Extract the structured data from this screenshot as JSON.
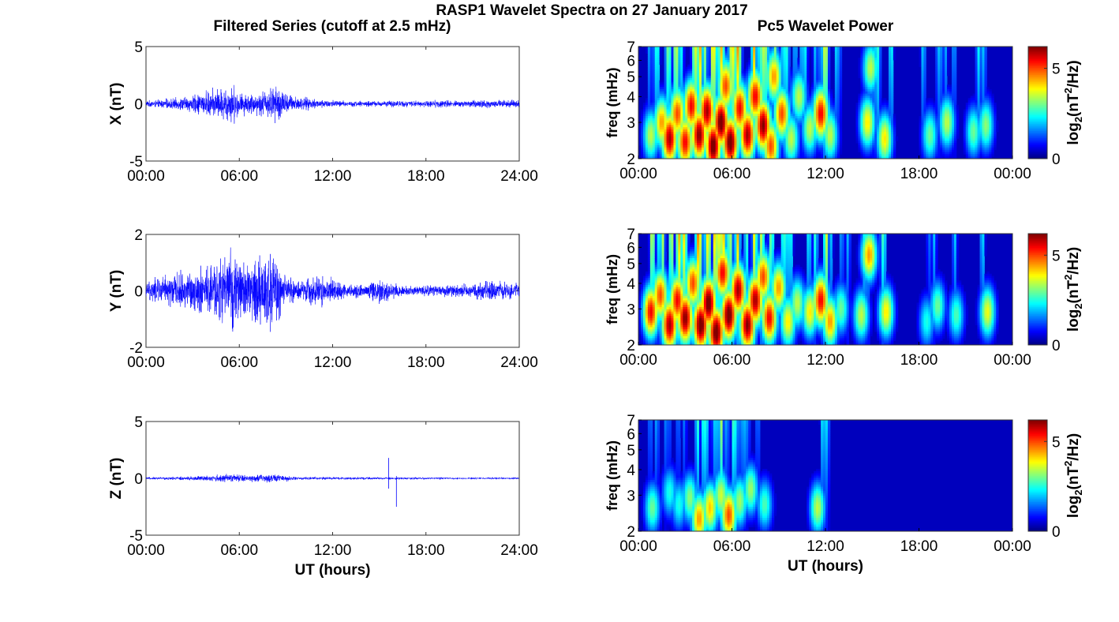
{
  "title": "RASP1 Wavelet Spectra on 27 January 2017",
  "left_title": "Filtered Series (cutoff at 2.5 mHz)",
  "right_title": "Pc5 Wavelet Power",
  "colorbar": {
    "label": "log2(nT2/Hz)",
    "ticks": [
      "0",
      "5"
    ],
    "range": [
      0,
      6.2
    ],
    "colormap": "jet"
  },
  "chart_data": [
    {
      "type": "line",
      "panel": "X",
      "title": "",
      "xlabel": "",
      "ylabel": "X (nT)",
      "xlim": [
        0,
        24
      ],
      "ylim": [
        -5,
        5
      ],
      "xticks": [
        "00:00",
        "06:00",
        "12:00",
        "18:00",
        "24:00"
      ],
      "yticks": [
        "-5",
        "0",
        "5"
      ],
      "color": "#0000ff",
      "envelope": [
        {
          "t": 0,
          "amp": 0.3
        },
        {
          "t": 1,
          "amp": 0.45
        },
        {
          "t": 2,
          "amp": 0.6
        },
        {
          "t": 3,
          "amp": 0.9
        },
        {
          "t": 4,
          "amp": 1.4
        },
        {
          "t": 5,
          "amp": 1.7
        },
        {
          "t": 5.5,
          "amp": 2.3
        },
        {
          "t": 6,
          "amp": 1.2
        },
        {
          "t": 7,
          "amp": 1.1
        },
        {
          "t": 8,
          "amp": 1.7
        },
        {
          "t": 8.5,
          "amp": 2.0
        },
        {
          "t": 9,
          "amp": 1.1
        },
        {
          "t": 10,
          "amp": 0.7
        },
        {
          "t": 11,
          "amp": 0.5
        },
        {
          "t": 12,
          "amp": 0.4
        },
        {
          "t": 13,
          "amp": 0.3
        },
        {
          "t": 15,
          "amp": 0.3
        },
        {
          "t": 16,
          "amp": 0.35
        },
        {
          "t": 18,
          "amp": 0.3
        },
        {
          "t": 19,
          "amp": 0.45
        },
        {
          "t": 20,
          "amp": 0.3
        },
        {
          "t": 22,
          "amp": 0.45
        },
        {
          "t": 24,
          "amp": 0.35
        }
      ]
    },
    {
      "type": "line",
      "panel": "Y",
      "title": "",
      "xlabel": "",
      "ylabel": "Y (nT)",
      "xlim": [
        0,
        24
      ],
      "ylim": [
        -2,
        2
      ],
      "xticks": [
        "00:00",
        "06:00",
        "12:00",
        "18:00",
        "24:00"
      ],
      "yticks": [
        "-2",
        "0",
        "2"
      ],
      "color": "#0000ff",
      "envelope": [
        {
          "t": 0,
          "amp": 0.3
        },
        {
          "t": 0.5,
          "amp": 0.55
        },
        {
          "t": 1,
          "amp": 0.6
        },
        {
          "t": 2,
          "amp": 0.75
        },
        {
          "t": 3,
          "amp": 0.9
        },
        {
          "t": 4,
          "amp": 1.1
        },
        {
          "t": 4.5,
          "amp": 1.3
        },
        {
          "t": 5,
          "amp": 1.4
        },
        {
          "t": 5.5,
          "amp": 1.75
        },
        {
          "t": 6,
          "amp": 1.3
        },
        {
          "t": 7,
          "amp": 1.4
        },
        {
          "t": 7.5,
          "amp": 1.65
        },
        {
          "t": 8,
          "amp": 1.8
        },
        {
          "t": 8.5,
          "amp": 1.4
        },
        {
          "t": 9,
          "amp": 0.6
        },
        {
          "t": 10,
          "amp": 0.45
        },
        {
          "t": 11,
          "amp": 0.7
        },
        {
          "t": 12,
          "amp": 0.55
        },
        {
          "t": 13,
          "amp": 0.3
        },
        {
          "t": 14,
          "amp": 0.3
        },
        {
          "t": 15,
          "amp": 0.55
        },
        {
          "t": 16,
          "amp": 0.35
        },
        {
          "t": 17,
          "amp": 0.2
        },
        {
          "t": 18,
          "amp": 0.25
        },
        {
          "t": 20,
          "amp": 0.25
        },
        {
          "t": 21,
          "amp": 0.3
        },
        {
          "t": 22.5,
          "amp": 0.45
        },
        {
          "t": 24,
          "amp": 0.3
        }
      ]
    },
    {
      "type": "line",
      "panel": "Z",
      "title": "",
      "xlabel": "UT (hours)",
      "ylabel": "Z (nT)",
      "xlim": [
        0,
        24
      ],
      "ylim": [
        -5,
        5
      ],
      "xticks": [
        "00:00",
        "06:00",
        "12:00",
        "18:00",
        "24:00"
      ],
      "yticks": [
        "-5",
        "0",
        "5"
      ],
      "color": "#0000ff",
      "envelope": [
        {
          "t": 0,
          "amp": 0.12
        },
        {
          "t": 2,
          "amp": 0.18
        },
        {
          "t": 4,
          "amp": 0.3
        },
        {
          "t": 5.5,
          "amp": 0.45
        },
        {
          "t": 6.5,
          "amp": 0.35
        },
        {
          "t": 8,
          "amp": 0.45
        },
        {
          "t": 9,
          "amp": 0.3
        },
        {
          "t": 10,
          "amp": 0.15
        },
        {
          "t": 12,
          "amp": 0.15
        },
        {
          "t": 15,
          "amp": 0.12
        },
        {
          "t": 18,
          "amp": 0.12
        },
        {
          "t": 24,
          "amp": 0.1
        }
      ],
      "spikes": [
        {
          "t": 15.6,
          "min": -0.9,
          "max": 1.8
        },
        {
          "t": 16.1,
          "min": -2.5,
          "max": 0.2
        }
      ]
    },
    {
      "type": "heatmap",
      "panel": "X",
      "title": "Pc5 Wavelet Power",
      "xlabel": "",
      "ylabel": "freq (mHz)",
      "xlim": [
        0,
        24
      ],
      "ylim": [
        2,
        7
      ],
      "yscale": "log",
      "xticks": [
        "00:00",
        "06:00",
        "12:00",
        "18:00",
        "00:00"
      ],
      "yticks": [
        "2",
        "3",
        "4",
        "5",
        "6",
        "7"
      ],
      "zlim": [
        0,
        6.2
      ],
      "blobs": [
        {
          "t": 0.8,
          "f": 2.6,
          "amp": 3.5
        },
        {
          "t": 1.5,
          "f": 3.0,
          "amp": 4.5
        },
        {
          "t": 2.0,
          "f": 2.5,
          "amp": 6.0
        },
        {
          "t": 2.5,
          "f": 3.3,
          "amp": 5.0
        },
        {
          "t": 3.0,
          "f": 2.4,
          "amp": 5.5
        },
        {
          "t": 3.4,
          "f": 3.6,
          "amp": 5.5
        },
        {
          "t": 3.9,
          "f": 2.6,
          "amp": 6.2
        },
        {
          "t": 4.4,
          "f": 3.4,
          "amp": 6.0
        },
        {
          "t": 4.8,
          "f": 2.3,
          "amp": 6.5
        },
        {
          "t": 5.3,
          "f": 3.0,
          "amp": 6.5
        },
        {
          "t": 5.6,
          "f": 4.5,
          "amp": 5.0
        },
        {
          "t": 5.9,
          "f": 2.4,
          "amp": 6.5
        },
        {
          "t": 6.5,
          "f": 3.5,
          "amp": 5.5
        },
        {
          "t": 7.0,
          "f": 2.6,
          "amp": 6.0
        },
        {
          "t": 7.5,
          "f": 4.0,
          "amp": 5.5
        },
        {
          "t": 8.0,
          "f": 2.9,
          "amp": 6.2
        },
        {
          "t": 8.5,
          "f": 2.3,
          "amp": 5.0
        },
        {
          "t": 8.7,
          "f": 5.0,
          "amp": 4.5
        },
        {
          "t": 9.2,
          "f": 3.3,
          "amp": 5.0
        },
        {
          "t": 9.8,
          "f": 2.5,
          "amp": 3.5
        },
        {
          "t": 10.3,
          "f": 4.0,
          "amp": 3.5
        },
        {
          "t": 11.0,
          "f": 2.8,
          "amp": 3.5
        },
        {
          "t": 11.7,
          "f": 3.3,
          "amp": 5.5
        },
        {
          "t": 12.3,
          "f": 2.6,
          "amp": 3.5
        },
        {
          "t": 14.7,
          "f": 3.0,
          "amp": 4.0
        },
        {
          "t": 14.9,
          "f": 5.5,
          "amp": 3.5
        },
        {
          "t": 15.8,
          "f": 2.5,
          "amp": 4.0
        },
        {
          "t": 18.7,
          "f": 2.6,
          "amp": 3.0
        },
        {
          "t": 19.8,
          "f": 3.0,
          "amp": 3.5
        },
        {
          "t": 21.5,
          "f": 2.7,
          "amp": 3.0
        },
        {
          "t": 22.3,
          "f": 2.9,
          "amp": 3.2
        }
      ]
    },
    {
      "type": "heatmap",
      "panel": "Y",
      "title": "",
      "xlabel": "",
      "ylabel": "freq (mHz)",
      "xlim": [
        0,
        24
      ],
      "ylim": [
        2,
        7
      ],
      "yscale": "log",
      "xticks": [
        "00:00",
        "06:00",
        "12:00",
        "18:00",
        "00:00"
      ],
      "yticks": [
        "2",
        "3",
        "4",
        "5",
        "6",
        "7"
      ],
      "zlim": [
        0,
        6.2
      ],
      "blobs": [
        {
          "t": 0.8,
          "f": 2.9,
          "amp": 5.5
        },
        {
          "t": 1.4,
          "f": 3.5,
          "amp": 5.0
        },
        {
          "t": 2.0,
          "f": 2.5,
          "amp": 6.0
        },
        {
          "t": 2.5,
          "f": 3.3,
          "amp": 5.5
        },
        {
          "t": 3.0,
          "f": 2.7,
          "amp": 6.2
        },
        {
          "t": 3.5,
          "f": 4.0,
          "amp": 5.0
        },
        {
          "t": 4.0,
          "f": 2.5,
          "amp": 6.5
        },
        {
          "t": 4.5,
          "f": 3.2,
          "amp": 6.5
        },
        {
          "t": 5.0,
          "f": 2.3,
          "amp": 6.5
        },
        {
          "t": 5.4,
          "f": 4.5,
          "amp": 5.5
        },
        {
          "t": 5.8,
          "f": 2.8,
          "amp": 6.5
        },
        {
          "t": 6.4,
          "f": 3.7,
          "amp": 6.0
        },
        {
          "t": 7.0,
          "f": 2.5,
          "amp": 6.2
        },
        {
          "t": 7.5,
          "f": 3.3,
          "amp": 6.0
        },
        {
          "t": 8.0,
          "f": 4.3,
          "amp": 5.0
        },
        {
          "t": 8.4,
          "f": 2.7,
          "amp": 5.5
        },
        {
          "t": 9.0,
          "f": 3.8,
          "amp": 4.5
        },
        {
          "t": 9.6,
          "f": 2.6,
          "amp": 4.0
        },
        {
          "t": 10.2,
          "f": 3.2,
          "amp": 3.5
        },
        {
          "t": 11.0,
          "f": 2.9,
          "amp": 4.0
        },
        {
          "t": 11.7,
          "f": 3.3,
          "amp": 5.5
        },
        {
          "t": 12.3,
          "f": 2.6,
          "amp": 4.5
        },
        {
          "t": 13.0,
          "f": 3.0,
          "amp": 3.0
        },
        {
          "t": 14.3,
          "f": 2.8,
          "amp": 3.5
        },
        {
          "t": 14.8,
          "f": 5.5,
          "amp": 4.5
        },
        {
          "t": 15.9,
          "f": 2.9,
          "amp": 4.0
        },
        {
          "t": 18.5,
          "f": 2.6,
          "amp": 2.5
        },
        {
          "t": 19.2,
          "f": 3.1,
          "amp": 3.0
        },
        {
          "t": 20.4,
          "f": 2.8,
          "amp": 2.8
        },
        {
          "t": 22.4,
          "f": 2.9,
          "amp": 3.8
        }
      ]
    },
    {
      "type": "heatmap",
      "panel": "Z",
      "title": "",
      "xlabel": "UT (hours)",
      "ylabel": "freq (mHz)",
      "xlim": [
        0,
        24
      ],
      "ylim": [
        2,
        7
      ],
      "yscale": "log",
      "xticks": [
        "00:00",
        "06:00",
        "12:00",
        "18:00",
        "00:00"
      ],
      "yticks": [
        "2",
        "3",
        "4",
        "5",
        "6",
        "7"
      ],
      "zlim": [
        0,
        6.2
      ],
      "blobs": [
        {
          "t": 0.9,
          "f": 2.6,
          "amp": 3.0
        },
        {
          "t": 2.0,
          "f": 3.1,
          "amp": 2.5
        },
        {
          "t": 2.6,
          "f": 2.7,
          "amp": 2.5
        },
        {
          "t": 3.3,
          "f": 2.9,
          "amp": 3.2
        },
        {
          "t": 3.9,
          "f": 2.3,
          "amp": 4.5
        },
        {
          "t": 4.6,
          "f": 2.6,
          "amp": 4.2
        },
        {
          "t": 5.3,
          "f": 3.0,
          "amp": 3.6
        },
        {
          "t": 5.8,
          "f": 2.4,
          "amp": 5.0
        },
        {
          "t": 6.5,
          "f": 2.8,
          "amp": 3.3
        },
        {
          "t": 7.2,
          "f": 3.2,
          "amp": 3.3
        },
        {
          "t": 8.1,
          "f": 2.7,
          "amp": 2.8
        },
        {
          "t": 11.5,
          "f": 2.6,
          "amp": 3.5
        }
      ]
    }
  ]
}
